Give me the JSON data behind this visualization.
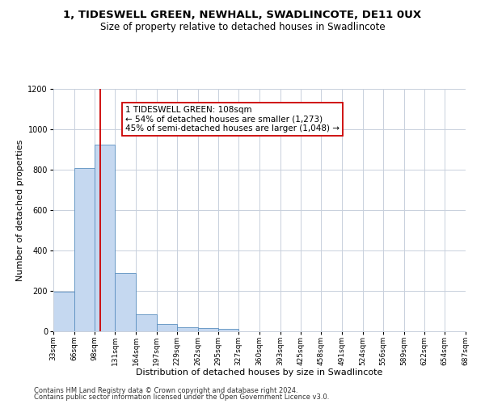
{
  "title_line1": "1, TIDESWELL GREEN, NEWHALL, SWADLINCOTE, DE11 0UX",
  "title_line2": "Size of property relative to detached houses in Swadlincote",
  "xlabel": "Distribution of detached houses by size in Swadlincote",
  "ylabel": "Number of detached properties",
  "footer_line1": "Contains HM Land Registry data © Crown copyright and database right 2024.",
  "footer_line2": "Contains public sector information licensed under the Open Government Licence v3.0.",
  "annotation_line1": "1 TIDESWELL GREEN: 108sqm",
  "annotation_line2": "← 54% of detached houses are smaller (1,273)",
  "annotation_line3": "45% of semi-detached houses are larger (1,048) →",
  "bin_edges": [
    33,
    66,
    98,
    131,
    164,
    197,
    229,
    262,
    295,
    327,
    360,
    393,
    425,
    458,
    491,
    524,
    556,
    589,
    622,
    654,
    687
  ],
  "bar_heights": [
    195,
    810,
    925,
    290,
    85,
    35,
    20,
    15,
    12,
    0,
    0,
    0,
    0,
    0,
    0,
    0,
    0,
    0,
    0,
    0
  ],
  "bar_color": "#c5d8f0",
  "bar_edge_color": "#5a8fc0",
  "vline_color": "#cc0000",
  "vline_x": 108,
  "annotation_box_edge_color": "#cc0000",
  "ylim": [
    0,
    1200
  ],
  "yticks": [
    0,
    200,
    400,
    600,
    800,
    1000,
    1200
  ],
  "tick_labels": [
    "33sqm",
    "66sqm",
    "98sqm",
    "131sqm",
    "164sqm",
    "197sqm",
    "229sqm",
    "262sqm",
    "295sqm",
    "327sqm",
    "360sqm",
    "393sqm",
    "425sqm",
    "458sqm",
    "491sqm",
    "524sqm",
    "556sqm",
    "589sqm",
    "622sqm",
    "654sqm",
    "687sqm"
  ],
  "background_color": "#ffffff",
  "grid_color": "#c8d0dc",
  "title_fontsize": 9.5,
  "subtitle_fontsize": 8.5,
  "axis_label_fontsize": 8,
  "tick_fontsize": 6.5,
  "annotation_fontsize": 7.5,
  "footer_fontsize": 6
}
